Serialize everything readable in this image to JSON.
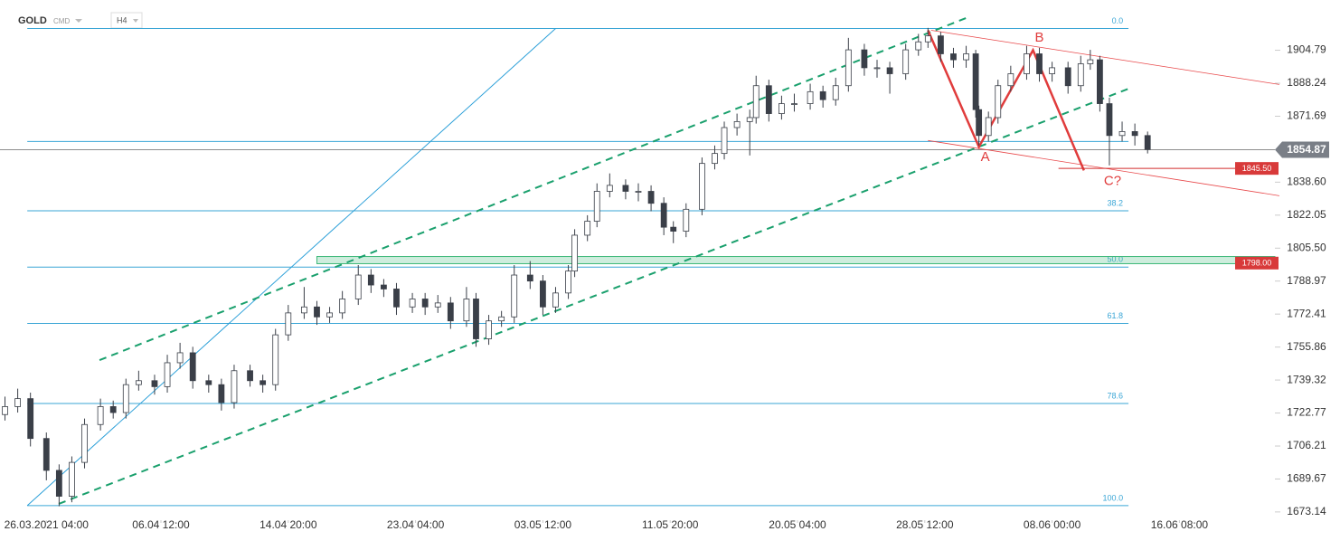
{
  "header": {
    "symbol": "GOLD",
    "market": "CMD",
    "interval": "H4"
  },
  "chart_data": {
    "type": "candlestick",
    "x": [
      1,
      5,
      9,
      14,
      18,
      22,
      26,
      31,
      35,
      39,
      43,
      48,
      52,
      56,
      60,
      65,
      69,
      73,
      78,
      82,
      86,
      90,
      95,
      99,
      103,
      107,
      112,
      116,
      120,
      124,
      129,
      133,
      137,
      141,
      146,
      149,
      153,
      157,
      161,
      166,
      170,
      174,
      178,
      180,
      184,
      187,
      191,
      196,
      200,
      204,
      208,
      211,
      215,
      220,
      224,
      227,
      231,
      235,
      237,
      241,
      245,
      249,
      254,
      258,
      262,
      266,
      271,
      275,
      279,
      284,
      288,
      291,
      295,
      299,
      303,
      306,
      307,
      310,
      313,
      317,
      322,
      326,
      330,
      335,
      339,
      342,
      345,
      348,
      352,
      356,
      360
    ],
    "ohlc": [
      [
        1722,
        1731,
        1719,
        1726
      ],
      [
        1726,
        1735,
        1723,
        1730
      ],
      [
        1730,
        1733,
        1706,
        1710
      ],
      [
        1710,
        1713,
        1689,
        1694
      ],
      [
        1694,
        1697,
        1676,
        1681
      ],
      [
        1681,
        1701,
        1678,
        1698
      ],
      [
        1698,
        1720,
        1695,
        1717
      ],
      [
        1717,
        1730,
        1714,
        1726
      ],
      [
        1726,
        1729,
        1720,
        1723
      ],
      [
        1723,
        1740,
        1720,
        1737
      ],
      [
        1737,
        1744,
        1734,
        1739
      ],
      [
        1739,
        1742,
        1732,
        1736
      ],
      [
        1736,
        1752,
        1733,
        1748
      ],
      [
        1748,
        1758,
        1745,
        1753
      ],
      [
        1753,
        1756,
        1735,
        1739
      ],
      [
        1739,
        1742,
        1733,
        1737
      ],
      [
        1737,
        1740,
        1724,
        1728
      ],
      [
        1728,
        1747,
        1725,
        1744
      ],
      [
        1744,
        1747,
        1736,
        1739
      ],
      [
        1739,
        1742,
        1733,
        1737
      ],
      [
        1737,
        1765,
        1734,
        1762
      ],
      [
        1762,
        1777,
        1759,
        1773
      ],
      [
        1773,
        1786,
        1770,
        1776
      ],
      [
        1776,
        1779,
        1767,
        1771
      ],
      [
        1771,
        1776,
        1768,
        1773
      ],
      [
        1773,
        1784,
        1770,
        1780
      ],
      [
        1780,
        1797,
        1777,
        1792
      ],
      [
        1792,
        1795,
        1783,
        1787
      ],
      [
        1787,
        1790,
        1781,
        1785
      ],
      [
        1785,
        1788,
        1772,
        1776
      ],
      [
        1776,
        1783,
        1773,
        1780
      ],
      [
        1780,
        1783,
        1772,
        1776
      ],
      [
        1776,
        1782,
        1773,
        1778
      ],
      [
        1778,
        1781,
        1765,
        1769
      ],
      [
        1769,
        1786,
        1766,
        1780
      ],
      [
        1780,
        1783,
        1756,
        1760
      ],
      [
        1760,
        1772,
        1757,
        1769
      ],
      [
        1769,
        1774,
        1766,
        1771
      ],
      [
        1771,
        1797,
        1768,
        1792
      ],
      [
        1792,
        1799,
        1785,
        1789
      ],
      [
        1789,
        1792,
        1772,
        1776
      ],
      [
        1776,
        1786,
        1773,
        1783
      ],
      [
        1783,
        1797,
        1780,
        1794
      ],
      [
        1794,
        1815,
        1791,
        1812
      ],
      [
        1812,
        1822,
        1809,
        1819
      ],
      [
        1819,
        1838,
        1816,
        1834
      ],
      [
        1834,
        1843,
        1831,
        1837
      ],
      [
        1837,
        1840,
        1830,
        1834
      ],
      [
        1834,
        1838,
        1829,
        1834
      ],
      [
        1834,
        1837,
        1824,
        1828
      ],
      [
        1828,
        1831,
        1812,
        1816
      ],
      [
        1816,
        1819,
        1808,
        1814
      ],
      [
        1814,
        1828,
        1811,
        1825
      ],
      [
        1825,
        1851,
        1822,
        1848
      ],
      [
        1848,
        1857,
        1845,
        1853
      ],
      [
        1853,
        1869,
        1850,
        1866
      ],
      [
        1866,
        1873,
        1862,
        1869
      ],
      [
        1869,
        1875,
        1852,
        1871
      ],
      [
        1871,
        1892,
        1868,
        1887
      ],
      [
        1887,
        1890,
        1869,
        1873
      ],
      [
        1873,
        1882,
        1870,
        1878
      ],
      [
        1878,
        1883,
        1874,
        1878
      ],
      [
        1878,
        1888,
        1875,
        1884
      ],
      [
        1884,
        1887,
        1876,
        1880
      ],
      [
        1880,
        1891,
        1877,
        1887
      ],
      [
        1887,
        1911,
        1884,
        1905
      ],
      [
        1905,
        1908,
        1892,
        1896
      ],
      [
        1896,
        1900,
        1891,
        1896
      ],
      [
        1896,
        1899,
        1883,
        1893
      ],
      [
        1893,
        1908,
        1890,
        1905
      ],
      [
        1905,
        1913,
        1902,
        1909
      ],
      [
        1909,
        1916,
        1906,
        1912
      ],
      [
        1912,
        1914,
        1899,
        1903
      ],
      [
        1903,
        1906,
        1896,
        1900
      ],
      [
        1900,
        1907,
        1896,
        1903
      ],
      [
        1903,
        1905,
        1871,
        1875
      ],
      [
        1875,
        1877,
        1857,
        1862
      ],
      [
        1862,
        1874,
        1859,
        1871
      ],
      [
        1871,
        1890,
        1868,
        1887
      ],
      [
        1887,
        1897,
        1884,
        1893
      ],
      [
        1893,
        1907,
        1890,
        1903
      ],
      [
        1903,
        1906,
        1889,
        1893
      ],
      [
        1893,
        1899,
        1889,
        1896
      ],
      [
        1896,
        1899,
        1883,
        1887
      ],
      [
        1887,
        1902,
        1884,
        1898
      ],
      [
        1898,
        1905,
        1895,
        1900
      ],
      [
        1900,
        1902,
        1874,
        1878
      ],
      [
        1878,
        1881,
        1847,
        1862
      ],
      [
        1862,
        1869,
        1859,
        1864
      ],
      [
        1864,
        1868,
        1857,
        1862
      ],
      [
        1862,
        1864,
        1853,
        1855
      ]
    ],
    "up_color": "#ffffff",
    "down_color": "#3a3f48",
    "candle_border": "#3a3f48",
    "xlim": [
      0,
      400
    ],
    "ylim": [
      1669,
      1930
    ],
    "xticks": [
      {
        "value": 14,
        "label": "26.03.2021 04:00"
      },
      {
        "value": 50,
        "label": "06.04 12:00"
      },
      {
        "value": 90,
        "label": "14.04 20:00"
      },
      {
        "value": 130,
        "label": "23.04 04:00"
      },
      {
        "value": 170,
        "label": "03.05 12:00"
      },
      {
        "value": 210,
        "label": "11.05 20:00"
      },
      {
        "value": 250,
        "label": "20.05 04:00"
      },
      {
        "value": 290,
        "label": "28.05 12:00"
      },
      {
        "value": 330,
        "label": "08.06 00:00"
      },
      {
        "value": 370,
        "label": "16.06 08:00"
      }
    ],
    "yticks": [
      1673.14,
      1689.67,
      1706.21,
      1722.77,
      1739.32,
      1755.86,
      1772.41,
      1788.97,
      {
        "value": 1805.5,
        "label": "1805.50"
      },
      1822.05,
      {
        "value": 1838.6,
        "label": "1838.60"
      },
      1871.69,
      1888.24,
      1904.79
    ],
    "last_price": 1854.87,
    "fib": {
      "high": 1915.7,
      "low": 1676.3,
      "color": "#3aa6d6",
      "x_range": [
        8,
        354
      ],
      "levels": [
        {
          "value": 0,
          "label": "0.0"
        },
        38.2,
        {
          "value": 50,
          "label": "50.0"
        },
        61.8,
        78.6,
        {
          "value": 100,
          "label": "100.0"
        }
      ]
    },
    "hline": 1859,
    "zone": {
      "top": 1801.3,
      "bottom": 1797.7,
      "x_start": 99,
      "label": {
        "value": 1798,
        "label": "1798.00"
      }
    },
    "level_mark": {
      "price": 1845.5,
      "x_start": 332,
      "label": {
        "value": 1845.5,
        "label": "1845.50"
      }
    },
    "lines": [
      {
        "color": "#2a9fd8",
        "dash": false,
        "width": 1,
        "points": [
          [
            8,
            1676.3
          ],
          [
            174,
            1915.7
          ]
        ]
      },
      {
        "color": "#1aa06d",
        "dash": true,
        "width": 2,
        "points": [
          [
            30.7,
            1749.3
          ],
          [
            304,
            1921.6
          ]
        ]
      },
      {
        "color": "#1aa06d",
        "dash": true,
        "width": 2,
        "points": [
          [
            17.9,
            1677.2
          ],
          [
            354.5,
            1885.8
          ]
        ]
      },
      {
        "color": "#e8484a",
        "dash": false,
        "width": 0.8,
        "points": [
          [
            292,
            1914.8
          ],
          [
            401.4,
            1887.6
          ]
        ]
      },
      {
        "color": "#e8484a",
        "dash": false,
        "width": 0.8,
        "points": [
          [
            291,
            1859.5
          ],
          [
            401.4,
            1831.8
          ]
        ]
      },
      {
        "color": "#e03c3c",
        "dash": false,
        "width": 2.5,
        "points": [
          [
            291,
            1914.8
          ],
          [
            307,
            1856.3
          ],
          [
            324,
            1904.8
          ],
          [
            340,
            1844.5
          ]
        ]
      }
    ],
    "annotations": [
      {
        "text": "A",
        "x": 309,
        "y": 1851
      },
      {
        "text": "B",
        "x": 326,
        "y": 1911
      },
      {
        "text": "C?",
        "x": 349,
        "y": 1839
      }
    ]
  }
}
